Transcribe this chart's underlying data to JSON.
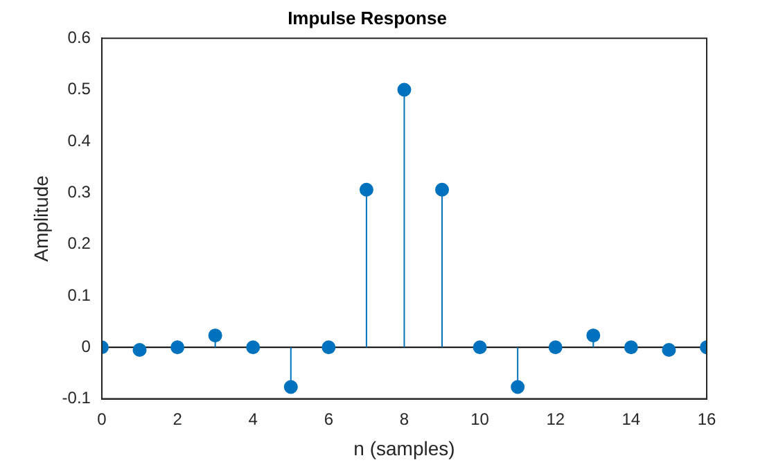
{
  "chart_data": {
    "type": "lollipop",
    "title": "Impulse Response",
    "xlabel": "n (samples)",
    "ylabel": "Amplitude",
    "x": [
      0,
      1,
      2,
      3,
      4,
      5,
      6,
      7,
      8,
      9,
      10,
      11,
      12,
      13,
      14,
      15,
      16
    ],
    "series": [
      {
        "color": "#0072bd",
        "values": [
          0,
          -0.005,
          0,
          0.023,
          0,
          -0.077,
          0,
          0.306,
          0.5,
          0.306,
          0,
          -0.077,
          0,
          0.023,
          0,
          -0.005,
          0
        ]
      }
    ],
    "xlim": [
      0,
      16
    ],
    "xticks": [
      0,
      2,
      4,
      6,
      8,
      10,
      12,
      14,
      16
    ],
    "ylim": [
      -0.1,
      0.6
    ],
    "yticks": [
      -0.1,
      0,
      0.1,
      0.2,
      0.3,
      0.4,
      0.5,
      0.6
    ],
    "grid": false,
    "legend": false,
    "marker": "circle"
  }
}
